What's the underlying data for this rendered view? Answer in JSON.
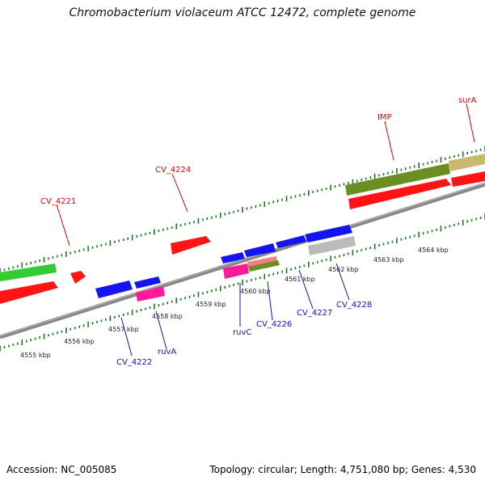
{
  "title": "Chromobacterium violaceum ATCC 12472, complete genome",
  "footer": {
    "accession": "Accession: NC_005085",
    "summary": "Topology: circular; Length: 4,751,080 bp; Genes: 4,530"
  },
  "scale_labels": [
    "4555 kbp",
    "4556 kbp",
    "4557 kbp",
    "4558 kbp",
    "4559 kbp",
    "4560 kbp",
    "4561 kbp",
    "4562 kbp",
    "4563 kbp",
    "4564 kbp"
  ],
  "top_gene_labels": [
    "CV_4221",
    "CV_4224",
    "IMP",
    "surA"
  ],
  "bottom_gene_labels": [
    "CV_4222",
    "ruvA",
    "ruvC",
    "CV_4226",
    "CV_4227",
    "CV_4228"
  ],
  "colors": {
    "forward_label": "#e00000",
    "reverse_label": "#1010c0",
    "genome_axis": "#888888",
    "tick": "#1a7a1a",
    "forward_gene": "#ff1010",
    "reverse_gene": "#1010ee",
    "green_feature": "#33cc33",
    "olive_feature": "#6b8e23",
    "tan_feature": "#c8b870",
    "pink_feature": "#ff1493",
    "grey_feature": "#bbbbbb"
  }
}
